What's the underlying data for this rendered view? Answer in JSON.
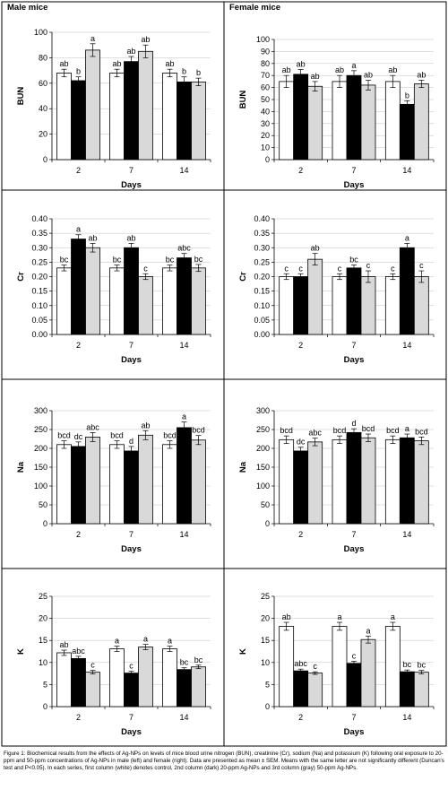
{
  "headers": {
    "left": "Male mice",
    "right": "Female mice"
  },
  "caption": "Figure 1: Biochemical results from the effects of Ag-NPs on levels of mice blood urine nitrogen (BUN), creatinine (Cr), sodium (Na) and potassium (K) following oral exposure to 20-ppm and 50-ppm concentrations of Ag-NPs in male (left) and female (right). Data are presented as mean ± SEM. Means with the same letter are not significantly different (Duncan's test and P<0.05). In each series, first column (white) denotes control, 2nd column (dark) 20-ppm Ag-NPs and 3rd column (gray) 50-ppm Ag-NPs.",
  "colors": {
    "control": "#ffffff",
    "ppm20": "#000000",
    "ppm50": "#d9d9d9",
    "border": "#000000",
    "grid": "#bfbfbf"
  },
  "chart_data": [
    {
      "id": "male-bun",
      "type": "bar",
      "sex": "Male",
      "xlabel": "Days",
      "ylabel": "BUN",
      "categories": [
        "2",
        "7",
        "14"
      ],
      "ylim": [
        0,
        100
      ],
      "ytick_step": 20,
      "ytick_decimals": 0,
      "series": [
        {
          "values": [
            68,
            68,
            68
          ],
          "errors": [
            3,
            3,
            3
          ],
          "letters": [
            "ab",
            "ab",
            "ab"
          ]
        },
        {
          "values": [
            62,
            77,
            61
          ],
          "errors": [
            3,
            4,
            4
          ],
          "letters": [
            "b",
            "ab",
            "b"
          ]
        },
        {
          "values": [
            86,
            85,
            61
          ],
          "errors": [
            5,
            5,
            3
          ],
          "letters": [
            "a",
            "ab",
            "b"
          ]
        }
      ]
    },
    {
      "id": "female-bun",
      "type": "bar",
      "sex": "Female",
      "xlabel": "Days",
      "ylabel": "BUN",
      "categories": [
        "2",
        "7",
        "14"
      ],
      "ylim": [
        0,
        100
      ],
      "ytick_step": 10,
      "ytick_decimals": 0,
      "series": [
        {
          "values": [
            65,
            65,
            65
          ],
          "errors": [
            5,
            5,
            5
          ],
          "letters": [
            "ab",
            "ab",
            "ab"
          ]
        },
        {
          "values": [
            71,
            70,
            46
          ],
          "errors": [
            4,
            4,
            3
          ],
          "letters": [
            "ab",
            "a",
            "b"
          ]
        },
        {
          "values": [
            61,
            62,
            63
          ],
          "errors": [
            4,
            4,
            3
          ],
          "letters": [
            "ab",
            "ab",
            "ab"
          ]
        }
      ]
    },
    {
      "id": "male-cr",
      "type": "bar",
      "sex": "Male",
      "xlabel": "Days",
      "ylabel": "Cr",
      "categories": [
        "2",
        "7",
        "14"
      ],
      "ylim": [
        0,
        0.4
      ],
      "ytick_step": 0.05,
      "ytick_decimals": 2,
      "series": [
        {
          "values": [
            0.23,
            0.23,
            0.23
          ],
          "errors": [
            0.01,
            0.01,
            0.01
          ],
          "letters": [
            "bc",
            "bc",
            "bc"
          ]
        },
        {
          "values": [
            0.33,
            0.3,
            0.265
          ],
          "errors": [
            0.015,
            0.015,
            0.015
          ],
          "letters": [
            "a",
            "ab",
            "abc"
          ]
        },
        {
          "values": [
            0.3,
            0.2,
            0.23
          ],
          "errors": [
            0.015,
            0.01,
            0.012
          ],
          "letters": [
            "ab",
            "c",
            "bc"
          ]
        }
      ]
    },
    {
      "id": "female-cr",
      "type": "bar",
      "sex": "Female",
      "xlabel": "Days",
      "ylabel": "Cr",
      "categories": [
        "2",
        "7",
        "14"
      ],
      "ylim": [
        0,
        0.4
      ],
      "ytick_step": 0.05,
      "ytick_decimals": 2,
      "series": [
        {
          "values": [
            0.2,
            0.2,
            0.2
          ],
          "errors": [
            0.01,
            0.01,
            0.01
          ],
          "letters": [
            "c",
            "c",
            "c"
          ]
        },
        {
          "values": [
            0.2,
            0.23,
            0.3
          ],
          "errors": [
            0.01,
            0.01,
            0.015
          ],
          "letters": [
            "c",
            "bc",
            "a"
          ]
        },
        {
          "values": [
            0.26,
            0.2,
            0.2
          ],
          "errors": [
            0.02,
            0.02,
            0.02
          ],
          "letters": [
            "ab",
            "c",
            "c"
          ]
        }
      ]
    },
    {
      "id": "male-na",
      "type": "bar",
      "sex": "Male",
      "xlabel": "Days",
      "ylabel": "Na",
      "categories": [
        "2",
        "7",
        "14"
      ],
      "ylim": [
        0,
        300
      ],
      "ytick_step": 50,
      "ytick_decimals": 0,
      "series": [
        {
          "values": [
            210,
            210,
            210
          ],
          "errors": [
            10,
            10,
            10
          ],
          "letters": [
            "bcd",
            "bcd",
            "bcd"
          ]
        },
        {
          "values": [
            205,
            193,
            255
          ],
          "errors": [
            12,
            12,
            15
          ],
          "letters": [
            "dc",
            "d",
            "a"
          ]
        },
        {
          "values": [
            230,
            235,
            222
          ],
          "errors": [
            12,
            12,
            12
          ],
          "letters": [
            "abc",
            "ab",
            "bcd"
          ]
        }
      ]
    },
    {
      "id": "female-na",
      "type": "bar",
      "sex": "Female",
      "xlabel": "Days",
      "ylabel": "Na",
      "categories": [
        "2",
        "7",
        "14"
      ],
      "ylim": [
        0,
        300
      ],
      "ytick_step": 50,
      "ytick_decimals": 0,
      "series": [
        {
          "values": [
            223,
            223,
            223
          ],
          "errors": [
            10,
            10,
            10
          ],
          "letters": [
            "bcd",
            "bcd",
            "bcd"
          ]
        },
        {
          "values": [
            193,
            242,
            228
          ],
          "errors": [
            10,
            10,
            10
          ],
          "letters": [
            "dc",
            "d",
            "a"
          ]
        },
        {
          "values": [
            217,
            228,
            220
          ],
          "errors": [
            10,
            10,
            10
          ],
          "letters": [
            "abc",
            "bcd",
            "bcd"
          ]
        }
      ]
    },
    {
      "id": "male-k",
      "type": "bar",
      "sex": "Male",
      "xlabel": "Days",
      "ylabel": "K",
      "categories": [
        "2",
        "7",
        "14"
      ],
      "ylim": [
        0,
        25
      ],
      "ytick_step": 5,
      "ytick_decimals": 0,
      "series": [
        {
          "values": [
            12.2,
            13.1,
            13.1
          ],
          "errors": [
            0.6,
            0.6,
            0.6
          ],
          "letters": [
            "ab",
            "a",
            "a"
          ]
        },
        {
          "values": [
            10.9,
            7.6,
            8.4
          ],
          "errors": [
            0.5,
            0.4,
            0.4
          ],
          "letters": [
            "abc",
            "c",
            "bc"
          ]
        },
        {
          "values": [
            7.8,
            13.5,
            9.0
          ],
          "errors": [
            0.4,
            0.6,
            0.4
          ],
          "letters": [
            "c",
            "a",
            "bc"
          ]
        }
      ]
    },
    {
      "id": "female-k",
      "type": "bar",
      "sex": "Female",
      "xlabel": "Days",
      "ylabel": "K",
      "categories": [
        "2",
        "7",
        "14"
      ],
      "ylim": [
        0,
        25
      ],
      "ytick_step": 5,
      "ytick_decimals": 0,
      "series": [
        {
          "values": [
            18.2,
            18.2,
            18.2
          ],
          "errors": [
            0.9,
            0.9,
            0.9
          ],
          "letters": [
            "ab",
            "a",
            "a"
          ]
        },
        {
          "values": [
            8.1,
            9.8,
            7.9
          ],
          "errors": [
            0.4,
            0.5,
            0.4
          ],
          "letters": [
            "abc",
            "c",
            "bc"
          ]
        },
        {
          "values": [
            7.6,
            15.2,
            7.8
          ],
          "errors": [
            0.3,
            0.8,
            0.4
          ],
          "letters": [
            "c",
            "a",
            "bc"
          ]
        }
      ]
    }
  ]
}
